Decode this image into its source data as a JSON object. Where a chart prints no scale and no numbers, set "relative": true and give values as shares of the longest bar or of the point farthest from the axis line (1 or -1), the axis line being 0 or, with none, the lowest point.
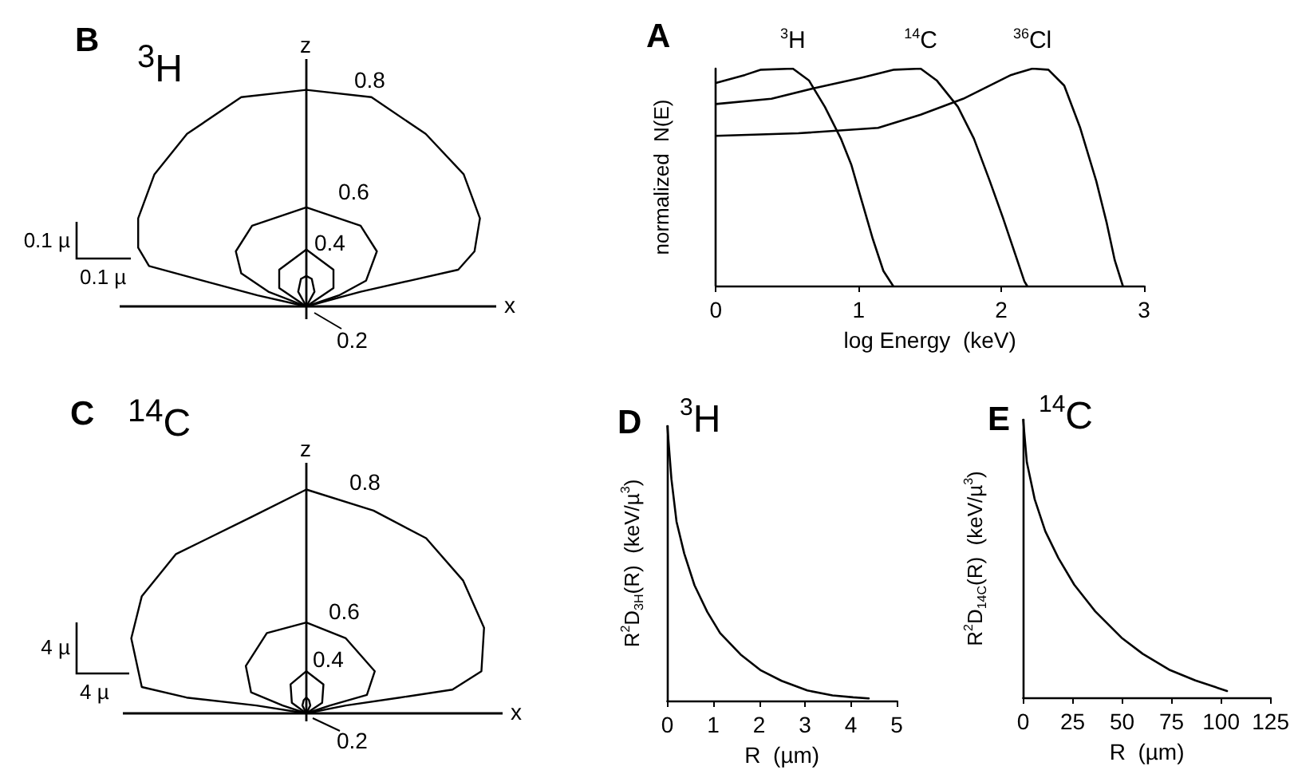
{
  "chart_data": [
    {
      "type": "other",
      "title": "B",
      "subtitle": "$^{3}$H",
      "xlabel": "x",
      "ylabel": "z",
      "annotations": [
        "0.1 µ",
        "0.1 µ",
        "0.8",
        "0.6",
        "0.4",
        "0.2"
      ]
    },
    {
      "type": "line",
      "title": "A",
      "xlabel": "log Energy  (keV)",
      "ylabel": "normalized  N(E)",
      "xlim": [
        0,
        3
      ],
      "xticks": [
        0,
        1,
        2,
        3
      ],
      "relative": true,
      "marker": "none",
      "line_style": "solid",
      "series": [
        {
          "name": "$^{3}$H",
          "color": "#000000",
          "x": [
            0,
            0.205,
            0.317,
            0.54,
            0.652,
            0.764,
            0.876,
            0.95,
            1.025,
            1.1,
            1.174,
            1.241
          ],
          "values": [
            0.934,
            0.971,
            0.995,
            1.0,
            0.946,
            0.824,
            0.678,
            0.556,
            0.385,
            0.215,
            0.068,
            0
          ]
        },
        {
          "name": "$^{14}$C",
          "color": "#000000",
          "x": [
            0,
            0.39,
            0.69,
            1.025,
            1.249,
            1.435,
            1.547,
            1.696,
            1.808,
            1.919,
            2.012,
            2.087,
            2.162,
            2.18
          ],
          "values": [
            0.837,
            0.861,
            0.91,
            0.959,
            0.995,
            1.0,
            0.946,
            0.824,
            0.678,
            0.483,
            0.312,
            0.166,
            0.02,
            0
          ]
        },
        {
          "name": "$^{36}$Cl",
          "color": "#000000",
          "x": [
            0,
            0.578,
            1.137,
            1.435,
            1.733,
            2.069,
            2.218,
            2.33,
            2.441,
            2.553,
            2.665,
            2.739,
            2.795,
            2.851
          ],
          "values": [
            0.69,
            0.702,
            0.727,
            0.788,
            0.861,
            0.971,
            1.0,
            0.995,
            0.922,
            0.727,
            0.483,
            0.288,
            0.117,
            0
          ]
        }
      ]
    },
    {
      "type": "other",
      "title": "C",
      "subtitle": "$^{14}$C",
      "xlabel": "x",
      "ylabel": "z",
      "annotations": [
        "4 µ",
        "4 µ",
        "0.8",
        "0.6",
        "0.4",
        "0.2"
      ]
    },
    {
      "type": "line",
      "title": "D",
      "subtitle": "$^{3}$H",
      "xlabel": "R  (µm)",
      "ylabel": "R$^{2}$D$_{3H}$(R)  (keV/µ$^{3}$)",
      "xlim": [
        0,
        5
      ],
      "xticks": [
        0,
        1,
        2,
        3,
        4,
        5
      ],
      "relative": true,
      "marker": "none",
      "line_style": "solid",
      "series": [
        {
          "color": "#000000",
          "x": [
            0,
            0.089,
            0.2,
            0.368,
            0.592,
            0.871,
            1.15,
            1.596,
            2.04,
            2.49,
            3.05,
            3.6,
            4.05,
            4.39
          ],
          "values": [
            1.0,
            0.807,
            0.652,
            0.536,
            0.42,
            0.323,
            0.246,
            0.168,
            0.11,
            0.072,
            0.037,
            0.019,
            0.012,
            0.008
          ]
        }
      ]
    },
    {
      "type": "line",
      "title": "E",
      "subtitle": "$^{14}$C",
      "xlabel": "R  (µm)",
      "ylabel": "R$^{2}$D$_{14C}$(R)  (keV/µ$^{3}$)",
      "xlim": [
        0,
        125
      ],
      "xticks": [
        0,
        25,
        50,
        75,
        100,
        125
      ],
      "relative": true,
      "marker": "none",
      "line_style": "solid",
      "series": [
        {
          "color": "#000000",
          "x": [
            0,
            1.86,
            5.85,
            11.2,
            17.8,
            25.8,
            36.4,
            49.7,
            60.4,
            73.7,
            87,
            103
          ],
          "values": [
            1.0,
            0.847,
            0.713,
            0.598,
            0.502,
            0.406,
            0.31,
            0.215,
            0.157,
            0.1,
            0.061,
            0.023
          ]
        }
      ]
    }
  ]
}
